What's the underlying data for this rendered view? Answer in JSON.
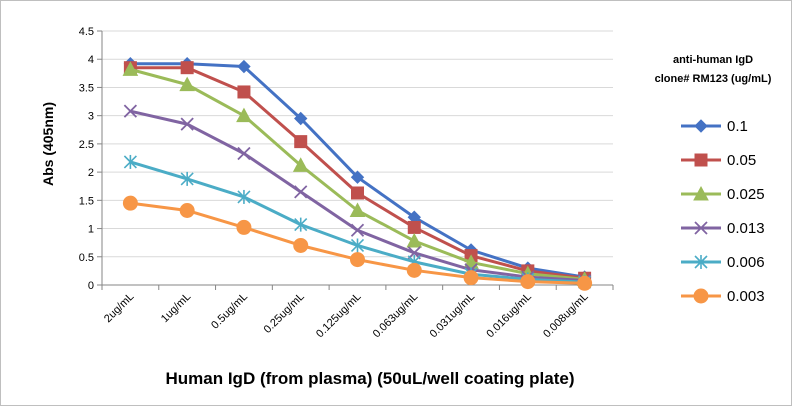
{
  "chart_data": {
    "type": "line",
    "title": "",
    "xlabel": "Human IgD (from plasma) (50uL/well coating plate)",
    "ylabel": "Abs (405nm)",
    "ylim": [
      0,
      4.5
    ],
    "ytick_step": 0.5,
    "yticks": [
      "0",
      "0.5",
      "1",
      "1.5",
      "2",
      "2.5",
      "3",
      "3.5",
      "4",
      "4.5"
    ],
    "grid": true,
    "legend_position": "right",
    "legend_title": [
      "anti-human IgD",
      "clone# RM123 (ug/mL)"
    ],
    "categories": [
      "2ug/mL",
      "1ug/mL",
      "0.5ug/mL",
      "0.25ug/mL",
      "0.125ug/mL",
      "0.063ug/mL",
      "0.031ug/mL",
      "0.016ug/mL",
      "0.008ug/mL"
    ],
    "series": [
      {
        "name": "0.1",
        "color": "#4472c4",
        "marker": "diamond",
        "values": [
          3.92,
          3.92,
          3.87,
          2.95,
          1.91,
          1.2,
          0.62,
          0.3,
          0.14
        ]
      },
      {
        "name": "0.05",
        "color": "#c0504d",
        "marker": "square",
        "values": [
          3.85,
          3.85,
          3.42,
          2.54,
          1.63,
          1.02,
          0.52,
          0.25,
          0.12
        ]
      },
      {
        "name": "0.025",
        "color": "#9bbb59",
        "marker": "triangle",
        "values": [
          3.82,
          3.55,
          3.0,
          2.12,
          1.32,
          0.78,
          0.4,
          0.2,
          0.1
        ]
      },
      {
        "name": "0.013",
        "color": "#8064a2",
        "marker": "x",
        "values": [
          3.08,
          2.85,
          2.33,
          1.65,
          0.97,
          0.57,
          0.27,
          0.14,
          0.08
        ]
      },
      {
        "name": "0.006",
        "color": "#4bacc6",
        "marker": "star",
        "values": [
          2.18,
          1.88,
          1.56,
          1.07,
          0.7,
          0.41,
          0.19,
          0.1,
          0.05
        ]
      },
      {
        "name": "0.003",
        "color": "#f79646",
        "marker": "circle",
        "values": [
          1.45,
          1.32,
          1.02,
          0.7,
          0.45,
          0.26,
          0.13,
          0.06,
          0.03
        ]
      }
    ]
  }
}
